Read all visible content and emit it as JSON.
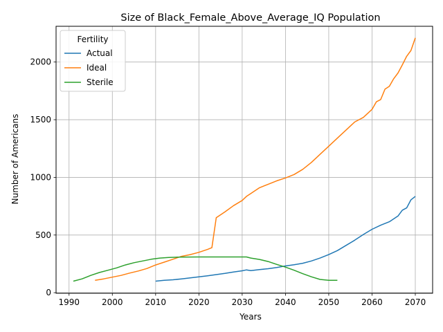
{
  "chart_data": {
    "type": "line",
    "title": "Size of Black_Female_Above_Average_IQ Population",
    "xlabel": "Years",
    "ylabel": "Number of Americans",
    "xlim": [
      1987,
      2074
    ],
    "ylim": [
      -5,
      2310
    ],
    "xticks": [
      1990,
      2000,
      2010,
      2020,
      2030,
      2040,
      2050,
      2060,
      2070
    ],
    "yticks": [
      0,
      500,
      1000,
      1500,
      2000
    ],
    "grid": true,
    "legend": {
      "title": "Fertility",
      "placement": "top-left"
    },
    "series": [
      {
        "name": "Actual",
        "color": "#1f77b4",
        "points": [
          [
            2010,
            100
          ],
          [
            2012,
            108
          ],
          [
            2014,
            112
          ],
          [
            2016,
            120
          ],
          [
            2018,
            128
          ],
          [
            2020,
            137
          ],
          [
            2022,
            147
          ],
          [
            2024,
            157
          ],
          [
            2026,
            167
          ],
          [
            2028,
            180
          ],
          [
            2030,
            190
          ],
          [
            2031,
            198
          ],
          [
            2032,
            192
          ],
          [
            2034,
            200
          ],
          [
            2036,
            208
          ],
          [
            2038,
            218
          ],
          [
            2040,
            232
          ],
          [
            2042,
            242
          ],
          [
            2044,
            255
          ],
          [
            2046,
            275
          ],
          [
            2048,
            300
          ],
          [
            2050,
            330
          ],
          [
            2052,
            365
          ],
          [
            2054,
            410
          ],
          [
            2056,
            455
          ],
          [
            2058,
            505
          ],
          [
            2060,
            550
          ],
          [
            2062,
            585
          ],
          [
            2064,
            615
          ],
          [
            2066,
            665
          ],
          [
            2067,
            715
          ],
          [
            2068,
            735
          ],
          [
            2069,
            805
          ],
          [
            2070,
            835
          ]
        ]
      },
      {
        "name": "Ideal",
        "color": "#ff7f0e",
        "points": [
          [
            1996,
            108
          ],
          [
            1998,
            120
          ],
          [
            2000,
            135
          ],
          [
            2002,
            150
          ],
          [
            2004,
            170
          ],
          [
            2006,
            188
          ],
          [
            2008,
            210
          ],
          [
            2010,
            240
          ],
          [
            2012,
            265
          ],
          [
            2014,
            290
          ],
          [
            2016,
            315
          ],
          [
            2018,
            330
          ],
          [
            2020,
            350
          ],
          [
            2022,
            375
          ],
          [
            2023,
            390
          ],
          [
            2024,
            650
          ],
          [
            2026,
            700
          ],
          [
            2028,
            755
          ],
          [
            2030,
            800
          ],
          [
            2031,
            835
          ],
          [
            2032,
            860
          ],
          [
            2034,
            910
          ],
          [
            2036,
            940
          ],
          [
            2038,
            970
          ],
          [
            2040,
            995
          ],
          [
            2042,
            1025
          ],
          [
            2044,
            1070
          ],
          [
            2046,
            1130
          ],
          [
            2048,
            1200
          ],
          [
            2050,
            1270
          ],
          [
            2052,
            1340
          ],
          [
            2054,
            1410
          ],
          [
            2056,
            1480
          ],
          [
            2058,
            1520
          ],
          [
            2060,
            1590
          ],
          [
            2061,
            1655
          ],
          [
            2062,
            1675
          ],
          [
            2063,
            1765
          ],
          [
            2064,
            1790
          ],
          [
            2065,
            1855
          ],
          [
            2066,
            1905
          ],
          [
            2067,
            1975
          ],
          [
            2068,
            2050
          ],
          [
            2069,
            2100
          ],
          [
            2070,
            2210
          ]
        ]
      },
      {
        "name": "Sterile",
        "color": "#2ca02c",
        "points": [
          [
            1991,
            100
          ],
          [
            1993,
            120
          ],
          [
            1995,
            150
          ],
          [
            1997,
            175
          ],
          [
            1999,
            195
          ],
          [
            2001,
            215
          ],
          [
            2003,
            240
          ],
          [
            2005,
            260
          ],
          [
            2007,
            275
          ],
          [
            2009,
            290
          ],
          [
            2011,
            300
          ],
          [
            2013,
            305
          ],
          [
            2015,
            308
          ],
          [
            2020,
            310
          ],
          [
            2025,
            310
          ],
          [
            2031,
            310
          ],
          [
            2032,
            300
          ],
          [
            2034,
            288
          ],
          [
            2036,
            270
          ],
          [
            2038,
            245
          ],
          [
            2040,
            222
          ],
          [
            2042,
            195
          ],
          [
            2044,
            165
          ],
          [
            2046,
            138
          ],
          [
            2048,
            115
          ],
          [
            2050,
            108
          ],
          [
            2052,
            108
          ]
        ]
      }
    ]
  }
}
